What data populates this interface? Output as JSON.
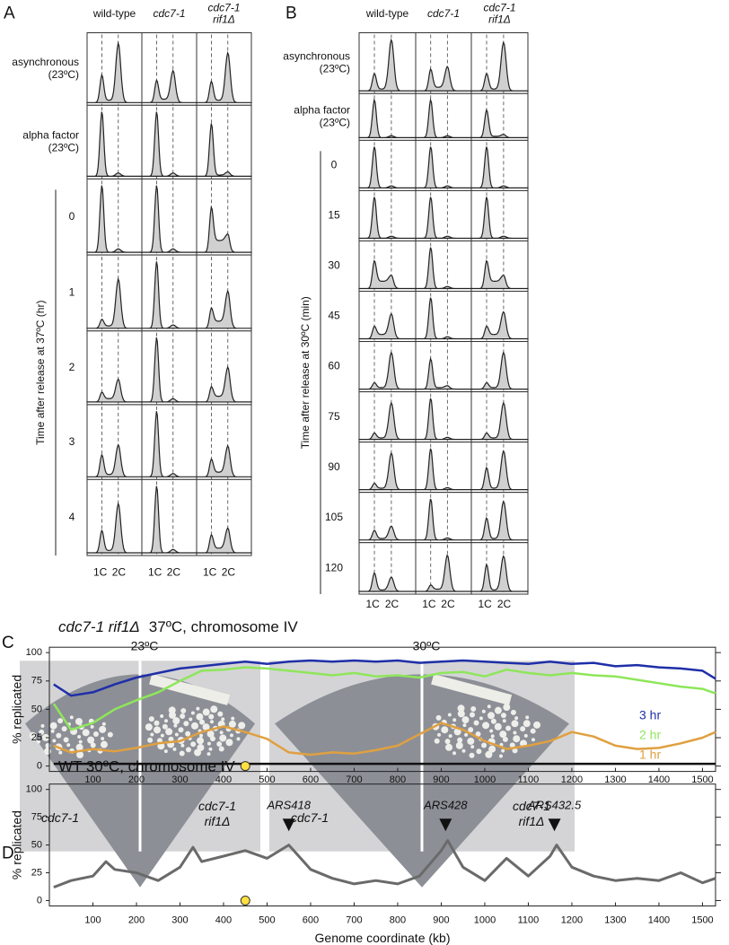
{
  "panel_labels": [
    "A",
    "B",
    "C",
    "D"
  ],
  "panel_a": {
    "columns": [
      [
        "wild-type"
      ],
      [
        "cdc7-1"
      ],
      [
        "cdc7-1",
        "rif1Δ"
      ]
    ],
    "conditions": [
      [
        "asynchronous",
        "(23ºC)"
      ],
      [
        "alpha factor",
        "(23ºC)"
      ]
    ],
    "times": [
      0,
      1,
      2,
      3,
      4
    ],
    "time_axis_label": "Time after release at 37ºC (hr)",
    "dna_labels": [
      "1C",
      "2C"
    ]
  },
  "panel_b": {
    "columns": [
      [
        "wild-type"
      ],
      [
        "cdc7-1"
      ],
      [
        "cdc7-1",
        "rif1Δ"
      ]
    ],
    "conditions": [
      [
        "asynchronous",
        "(23ºC)"
      ],
      [
        "alpha factor",
        "(23ºC)"
      ]
    ],
    "times": [
      0,
      15,
      30,
      45,
      60,
      75,
      90,
      105,
      120
    ],
    "time_axis_label": "Time after release at 30ºC (min)",
    "dna_labels": [
      "1C",
      "2C"
    ]
  },
  "panel_c": {
    "temperatures": [
      "23ºC",
      "30ºC"
    ],
    "strains": [
      [
        "cdc7-1"
      ],
      [
        "cdc7-1",
        "rif1Δ"
      ]
    ]
  },
  "chart_data": [
    {
      "type": "line",
      "title_strain": "cdc7-1 rif1Δ",
      "title": "37ºC, chromosome IV",
      "ylabel": "% replicated",
      "x": [
        10,
        50,
        100,
        150,
        200,
        250,
        300,
        350,
        400,
        450,
        500,
        550,
        600,
        650,
        700,
        750,
        800,
        850,
        900,
        950,
        1000,
        1050,
        1100,
        1150,
        1200,
        1250,
        1300,
        1350,
        1400,
        1450,
        1500,
        1530
      ],
      "series": [
        {
          "name": "3 hr",
          "color": "#1f2fa8",
          "values": [
            72,
            62,
            65,
            72,
            78,
            82,
            86,
            88,
            90,
            92,
            90,
            92,
            93,
            92,
            93,
            92,
            93,
            91,
            92,
            93,
            92,
            91,
            90,
            92,
            90,
            91,
            88,
            89,
            87,
            86,
            84,
            77
          ]
        },
        {
          "name": "2 hr",
          "color": "#8ee65a",
          "values": [
            55,
            32,
            38,
            50,
            58,
            65,
            75,
            84,
            85,
            87,
            86,
            84,
            82,
            80,
            82,
            79,
            80,
            78,
            82,
            83,
            79,
            85,
            82,
            80,
            82,
            80,
            79,
            76,
            73,
            70,
            68,
            64
          ]
        },
        {
          "name": "1 hr",
          "color": "#e0a040",
          "values": [
            18,
            12,
            15,
            13,
            16,
            20,
            22,
            30,
            35,
            30,
            24,
            12,
            10,
            12,
            11,
            14,
            18,
            28,
            38,
            32,
            22,
            15,
            18,
            22,
            30,
            26,
            18,
            15,
            16,
            20,
            25,
            30
          ]
        },
        {
          "color": "#111111",
          "values": [
            2,
            2,
            2,
            2,
            2,
            2,
            2,
            2,
            2,
            2,
            2,
            2,
            2,
            2,
            2,
            2,
            2,
            2,
            2,
            2,
            2,
            2,
            2,
            2,
            2,
            2,
            2,
            2,
            2,
            2,
            2,
            2
          ]
        }
      ],
      "xlim": [
        0,
        1530
      ],
      "ylim": [
        0,
        100
      ],
      "xticks": [
        100,
        200,
        300,
        400,
        500,
        600,
        700,
        800,
        900,
        1000,
        1100,
        1200,
        1300,
        1400,
        1500
      ],
      "yticks": [
        0,
        25,
        50,
        75,
        100
      ],
      "marker_x": 450
    },
    {
      "type": "line",
      "title": "WT 30ºC, chromosome IV",
      "ylabel": "% replicated",
      "xlabel": "Genome coordinate (kb)",
      "x": [
        10,
        50,
        100,
        130,
        150,
        200,
        250,
        300,
        330,
        350,
        400,
        450,
        500,
        550,
        600,
        650,
        700,
        750,
        800,
        850,
        900,
        915,
        950,
        1000,
        1050,
        1100,
        1150,
        1165,
        1200,
        1250,
        1300,
        1350,
        1400,
        1450,
        1500,
        1530
      ],
      "series": [
        {
          "color": "#6a6a6a",
          "values": [
            12,
            18,
            22,
            35,
            28,
            25,
            18,
            30,
            48,
            35,
            40,
            45,
            38,
            50,
            28,
            20,
            15,
            18,
            15,
            22,
            45,
            54,
            30,
            18,
            38,
            22,
            40,
            50,
            30,
            22,
            18,
            20,
            18,
            25,
            16,
            20
          ]
        }
      ],
      "annotations": [
        {
          "text": "ARS418",
          "x": 550
        },
        {
          "text": "ARS428",
          "x": 910
        },
        {
          "text": "ARS432.5",
          "x": 1160
        }
      ],
      "xlim": [
        0,
        1530
      ],
      "ylim": [
        0,
        100
      ],
      "xticks": [
        100,
        200,
        300,
        400,
        500,
        600,
        700,
        800,
        900,
        1000,
        1100,
        1200,
        1300,
        1400,
        1500
      ],
      "yticks": [
        0,
        25,
        50,
        75,
        100
      ],
      "marker_x": 450
    }
  ]
}
